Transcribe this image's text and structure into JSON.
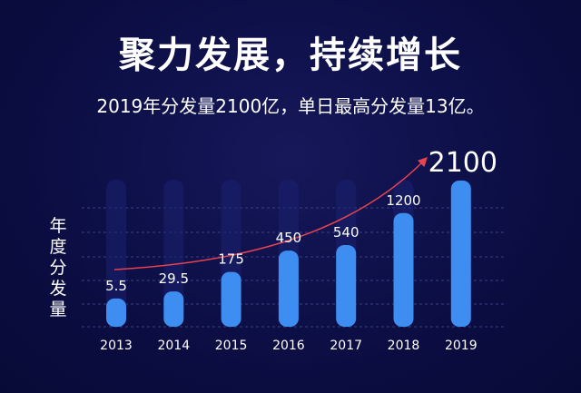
{
  "header": {
    "title": "聚力发展，持续增长",
    "subtitle": "2019年分发量2100亿，单日最高分发量13亿。"
  },
  "colors": {
    "background": "#0c0e45",
    "bar": "#3d8ef0",
    "bar_track": "#1c2170",
    "gridline": "#39407f",
    "trend_arrow": "#e8434f"
  },
  "chart_data": {
    "type": "bar",
    "title": "",
    "xlabel": "",
    "ylabel": "年度分发量",
    "categories": [
      "2013",
      "2014",
      "2015",
      "2016",
      "2017",
      "2018",
      "2019"
    ],
    "values": [
      5.5,
      29.5,
      175,
      450,
      540,
      1200,
      2100
    ],
    "value_labels": [
      "5.5",
      "29.5",
      "175",
      "450",
      "540",
      "1200",
      "2100"
    ],
    "grid": true,
    "legend": "none",
    "trend_arrow": true
  }
}
